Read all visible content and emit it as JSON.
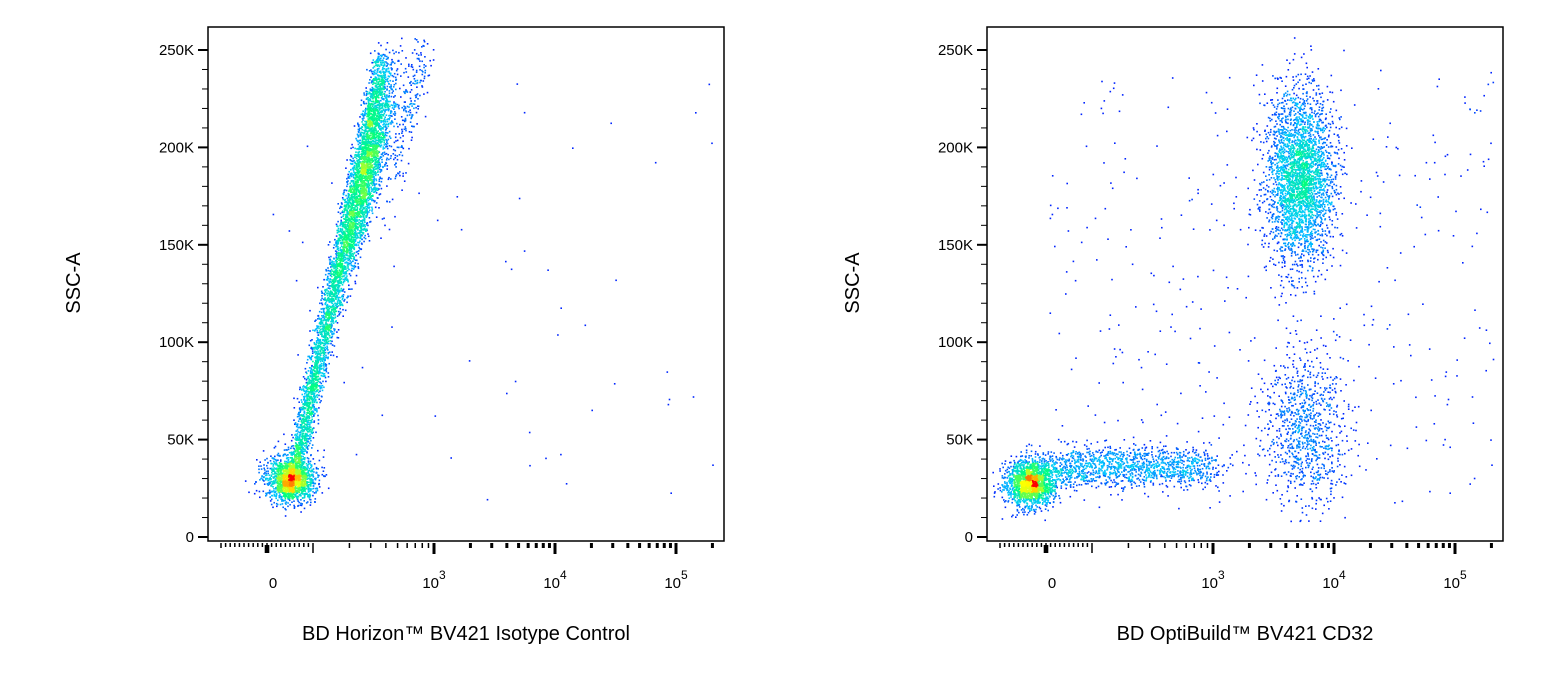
{
  "chart_data": [
    {
      "type": "scatter",
      "subtype": "flow-cytometry-pseudocolor-density",
      "xlabel": "BD Horizon™ BV421 Isotype Control",
      "ylabel": "SSC-A",
      "x_scale": "biexponential",
      "x_ticks": [
        {
          "value": 0,
          "label": "0"
        },
        {
          "value": 1000,
          "label": "10",
          "exp": "3"
        },
        {
          "value": 10000,
          "label": "10",
          "exp": "4"
        },
        {
          "value": 100000,
          "label": "10",
          "exp": "5"
        }
      ],
      "y_ticks": [
        {
          "value": 0,
          "label": "0"
        },
        {
          "value": 50000,
          "label": "50K"
        },
        {
          "value": 100000,
          "label": "100K"
        },
        {
          "value": 150000,
          "label": "150K"
        },
        {
          "value": 200000,
          "label": "200K"
        },
        {
          "value": 250000,
          "label": "250K"
        }
      ],
      "ylim": [
        0,
        262000
      ],
      "colormap": [
        "#0000ff",
        "#00c8ff",
        "#00ff80",
        "#ffff00",
        "#ff0000"
      ],
      "populations": [
        {
          "x_center": 50,
          "y_center": 30000,
          "count": 1600
        },
        {
          "x_from": 60,
          "x_to": 370,
          "y_from": 35000,
          "y_to": 245000,
          "count": 3600
        },
        {
          "x_center": 280,
          "y_center": 185000,
          "count": 1800
        },
        {
          "x_center": 650,
          "y_center": 225000,
          "count": 250
        },
        {
          "scatter": "sparse",
          "count": 60
        }
      ]
    },
    {
      "type": "scatter",
      "subtype": "flow-cytometry-pseudocolor-density",
      "xlabel": "BD OptiBuild™ BV421 CD32",
      "ylabel": "SSC-A",
      "x_scale": "biexponential",
      "x_ticks": [
        {
          "value": 0,
          "label": "0"
        },
        {
          "value": 1000,
          "label": "10",
          "exp": "3"
        },
        {
          "value": 10000,
          "label": "10",
          "exp": "4"
        },
        {
          "value": 100000,
          "label": "10",
          "exp": "5"
        }
      ],
      "y_ticks": [
        {
          "value": 0,
          "label": "0"
        },
        {
          "value": 50000,
          "label": "50K"
        },
        {
          "value": 100000,
          "label": "100K"
        },
        {
          "value": 150000,
          "label": "150K"
        },
        {
          "value": 200000,
          "label": "200K"
        },
        {
          "value": 250000,
          "label": "250K"
        }
      ],
      "ylim": [
        0,
        262000
      ],
      "colormap": [
        "#0000ff",
        "#00c8ff",
        "#00ff80",
        "#ffff00",
        "#ff0000"
      ],
      "populations": [
        {
          "x_center": -35,
          "y_center": 28000,
          "count": 1800
        },
        {
          "x_from": 0,
          "x_to": 900,
          "y_from": 32000,
          "y_to": 40000,
          "count": 1300
        },
        {
          "x_center": 5200,
          "y_center": 185000,
          "count": 3000
        },
        {
          "x_center": 5600,
          "y_center": 55000,
          "count": 900
        },
        {
          "scatter": "sparse",
          "count": 400
        }
      ]
    }
  ]
}
